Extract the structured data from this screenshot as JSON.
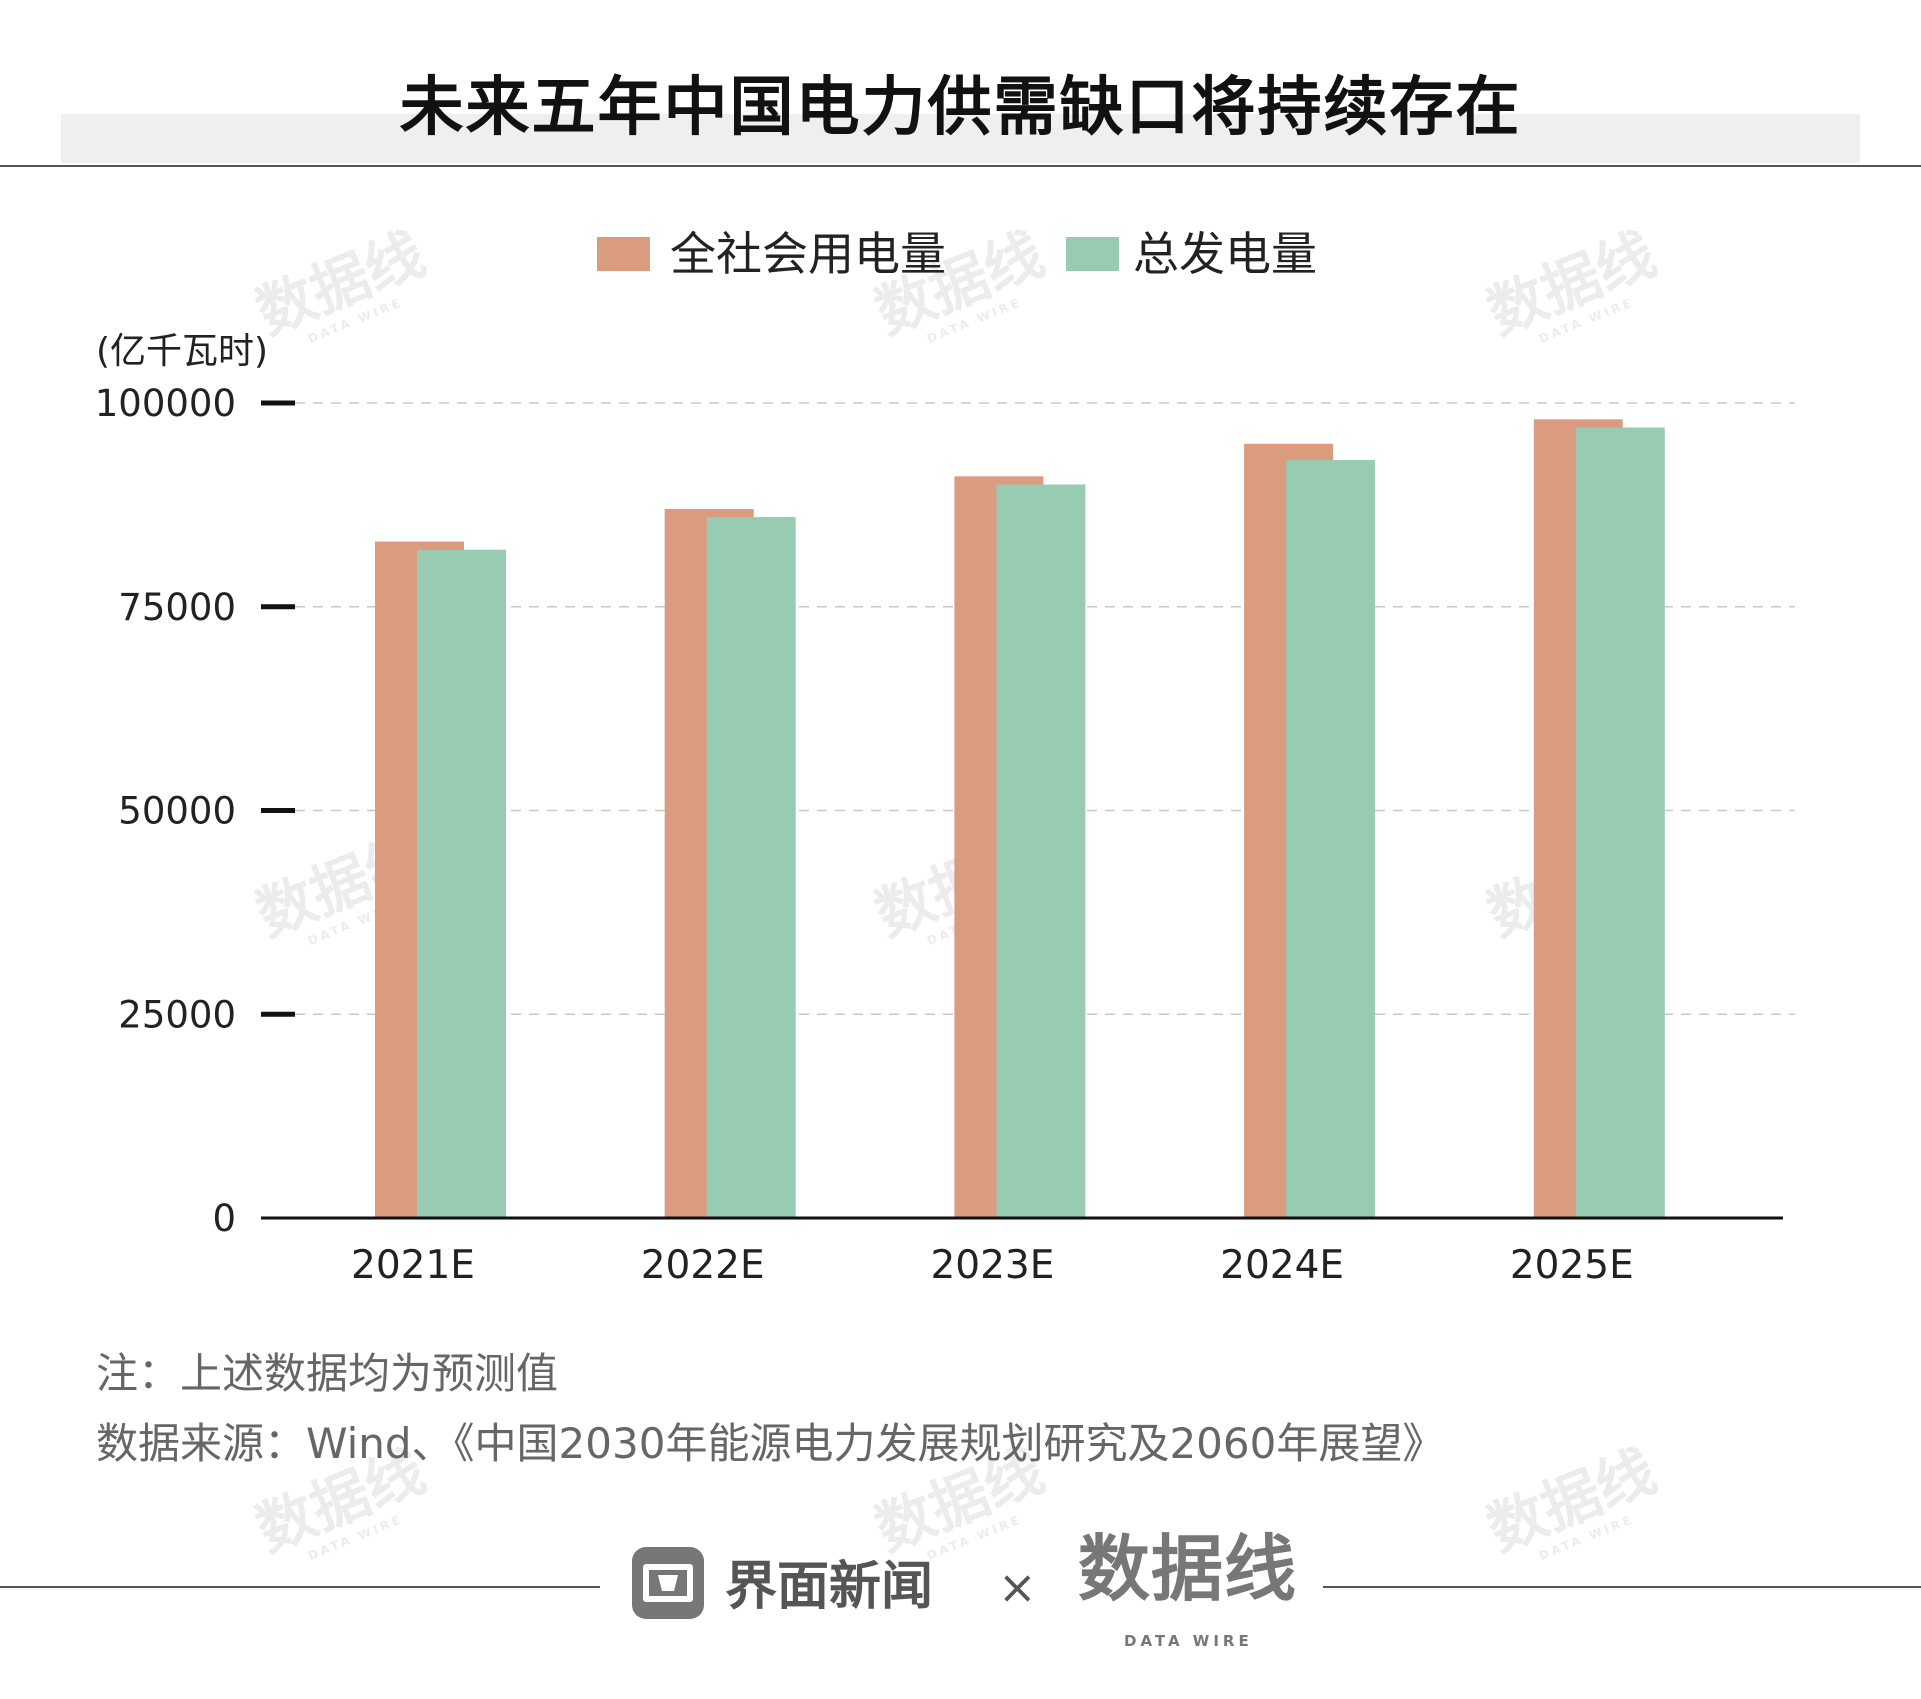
{
  "title": "未来五年中国电力供需缺口将持续存在",
  "colors": {
    "series_1": "#DA9B7E",
    "series_2": "#97CCB2",
    "grid": "#c8c8c8",
    "axis": "#111111",
    "note_text": "#666666",
    "band": "#efefef"
  },
  "chart_data": {
    "type": "bar",
    "title": "未来五年中国电力供需缺口将持续存在",
    "ylabel": "(亿千瓦时)",
    "xlabel": "",
    "categories": [
      "2021E",
      "2022E",
      "2023E",
      "2024E",
      "2025E"
    ],
    "series": [
      {
        "name": "全社会用电量",
        "color": "#DA9B7E",
        "values": [
          83000,
          87000,
          91000,
          95000,
          98000
        ]
      },
      {
        "name": "总发电量",
        "color": "#97CCB2",
        "values": [
          82000,
          86000,
          90000,
          93000,
          97000
        ]
      }
    ],
    "ylim": [
      0,
      100000
    ],
    "y_ticks": [
      0,
      25000,
      50000,
      75000,
      100000
    ],
    "grid": true,
    "legend": "top-center"
  },
  "notes": {
    "note": "注：上述数据均为预测值",
    "source": "数据来源：Wind、《中国2030年能源电力发展规划研究及2060年展望》"
  },
  "footer": {
    "brand": "界面新闻",
    "separator": "×",
    "partner_logo": "数据线",
    "partner_sub": "DATA WIRE",
    "brand_icon": "jiemian-news-icon"
  },
  "watermark": {
    "text": "数据线",
    "sub": "DATA WIRE"
  }
}
